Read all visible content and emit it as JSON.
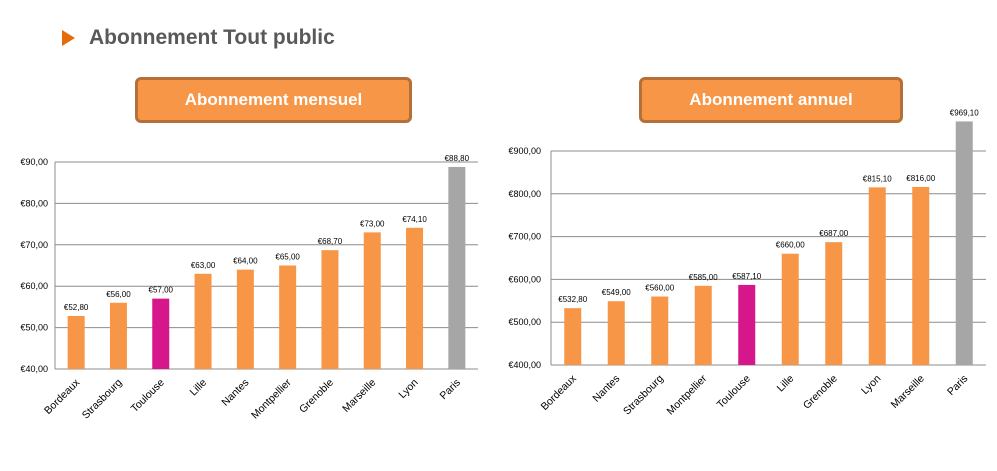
{
  "heading": {
    "title": "Abonnement Tout public"
  },
  "colors": {
    "orange": "#f79646",
    "magenta": "#d6168b",
    "gray": "#a6a6a6",
    "arrow": "#e46c0a"
  },
  "chart_data": [
    {
      "type": "bar",
      "title": "Abonnement mensuel",
      "categories": [
        "Bordeaux",
        "Strasbourg",
        "Toulouse",
        "Lille",
        "Nantes",
        "Montpellier",
        "Grenoble",
        "Marseille",
        "Lyon",
        "Paris"
      ],
      "values": [
        52.8,
        56.0,
        57.0,
        63.0,
        64.0,
        65.0,
        68.7,
        73.0,
        74.1,
        88.8
      ],
      "value_labels": [
        "€52,80",
        "€56,00",
        "€57,00",
        "€63,00",
        "€64,00",
        "€65,00",
        "€68,70",
        "€73,00",
        "€74,10",
        "€88,80"
      ],
      "bar_colors": [
        "orange",
        "orange",
        "magenta",
        "orange",
        "orange",
        "orange",
        "orange",
        "orange",
        "orange",
        "gray"
      ],
      "ylim": [
        40,
        90
      ],
      "yticks": [
        40,
        50,
        60,
        70,
        80,
        90
      ],
      "ytick_labels": [
        "€40,00",
        "€50,00",
        "€60,00",
        "€70,00",
        "€80,00",
        "€90,00"
      ],
      "grid": true
    },
    {
      "type": "bar",
      "title": "Abonnement annuel",
      "categories": [
        "Bordeaux",
        "Nantes",
        "Strasbourg",
        "Montpellier",
        "Toulouse",
        "Lille",
        "Grenoble",
        "Lyon",
        "Marseille",
        "Paris"
      ],
      "values": [
        532.8,
        549.0,
        560.0,
        585.0,
        587.1,
        660.0,
        687.0,
        815.1,
        816.0,
        969.1
      ],
      "value_labels": [
        "€532,80",
        "€549,00",
        "€560,00",
        "€585,00",
        "€587,10",
        "€660,00",
        "€687,00",
        "€815,10",
        "€816,00",
        "€969,10"
      ],
      "bar_colors": [
        "orange",
        "orange",
        "orange",
        "orange",
        "magenta",
        "orange",
        "orange",
        "orange",
        "orange",
        "gray"
      ],
      "ylim": [
        400,
        900
      ],
      "yticks": [
        400,
        500,
        600,
        700,
        800,
        900
      ],
      "ytick_labels": [
        "€400,00",
        "€500,00",
        "€600,00",
        "€700,00",
        "€800,00",
        "€900,00"
      ],
      "grid": true
    }
  ]
}
